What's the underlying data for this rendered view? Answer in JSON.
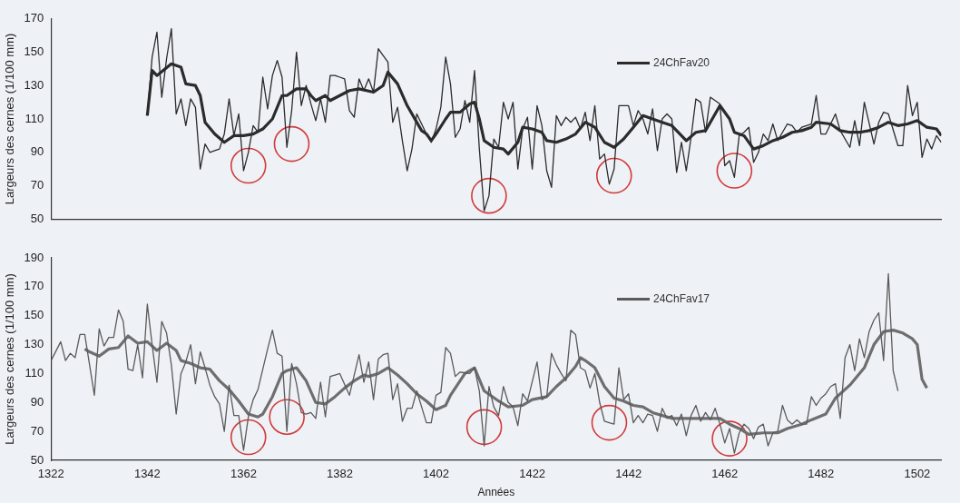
{
  "chart_data": [
    {
      "type": "line",
      "ylabel": "Largeurs des cernes (1/100 mm)",
      "xlim": [
        1322,
        1507
      ],
      "xticks": [
        1322,
        1342,
        1362,
        1382,
        1402,
        1422,
        1442,
        1462,
        1482,
        1502
      ],
      "ylim": [
        50,
        170
      ],
      "yticks": [
        50,
        70,
        90,
        110,
        130,
        150,
        170
      ],
      "tick_labels": "y",
      "grid": false,
      "legend": "top right",
      "marker": "none",
      "line_style": "solid",
      "series": [
        {
          "name": "24ChFav20",
          "color": "#2b2b2b",
          "x": [
            1342,
            1343,
            1344,
            1345,
            1346,
            1347,
            1348,
            1349,
            1350,
            1351,
            1352,
            1353,
            1354,
            1355,
            1356,
            1357,
            1358,
            1359,
            1360,
            1361,
            1362,
            1363,
            1364,
            1365,
            1366,
            1367,
            1368,
            1369,
            1370,
            1371,
            1372,
            1373,
            1374,
            1375,
            1376,
            1377,
            1378,
            1379,
            1380,
            1381,
            1382,
            1383,
            1384,
            1385,
            1386,
            1387,
            1388,
            1389,
            1390,
            1391,
            1392,
            1393,
            1394,
            1395,
            1396,
            1397,
            1398,
            1399,
            1400,
            1401,
            1402,
            1403,
            1404,
            1405,
            1406,
            1407,
            1408,
            1409,
            1410,
            1411,
            1412,
            1413,
            1414,
            1415,
            1416,
            1417,
            1418,
            1419,
            1420,
            1421,
            1422,
            1423,
            1424,
            1425,
            1426,
            1427,
            1428,
            1429,
            1430,
            1431,
            1432,
            1433,
            1434,
            1435,
            1436,
            1437,
            1438,
            1439,
            1440,
            1441,
            1442,
            1443,
            1444,
            1445,
            1446,
            1447,
            1448,
            1449,
            1450,
            1451,
            1452,
            1453,
            1454,
            1455,
            1456,
            1457,
            1458,
            1459,
            1460,
            1461,
            1462,
            1463,
            1464,
            1465,
            1466,
            1467,
            1468,
            1469,
            1470,
            1471,
            1472,
            1473,
            1474,
            1475,
            1476,
            1477,
            1478,
            1479,
            1480,
            1481,
            1482,
            1483,
            1485,
            1486,
            1488,
            1489,
            1490,
            1491,
            1493,
            1494,
            1495,
            1496,
            1498,
            1499,
            1500,
            1501,
            1502,
            1503,
            1504,
            1505,
            1506,
            1507
          ],
          "values": [
            112,
            147,
            162,
            123,
            146,
            164,
            113,
            122,
            106,
            122,
            117,
            80,
            95,
            90,
            91,
            92,
            101,
            122,
            100,
            113,
            79,
            90,
            106,
            102,
            135,
            116,
            136,
            145,
            135,
            93,
            115,
            150,
            118,
            130,
            119,
            109,
            122,
            108,
            136,
            136,
            135,
            134,
            115,
            111,
            134,
            127,
            134,
            126,
            152,
            148,
            144,
            108,
            117,
            97,
            79,
            92,
            113,
            107,
            101,
            96,
            104,
            117,
            147,
            131,
            99,
            104,
            121,
            108,
            139,
            92,
            55,
            64,
            98,
            93,
            120,
            110,
            120,
            80,
            104,
            111,
            80,
            118,
            106,
            79,
            69,
            112,
            106,
            111,
            108,
            111,
            104,
            114,
            97,
            118,
            86,
            89,
            71,
            80,
            118,
            118,
            118,
            106,
            115,
            110,
            101,
            116,
            91,
            110,
            113,
            110,
            78,
            96,
            79,
            99,
            122,
            120,
            102,
            123,
            121,
            119,
            82,
            85,
            75,
            100,
            102,
            105,
            84,
            90,
            101,
            97,
            107,
            97,
            102,
            107,
            106,
            102,
            105,
            106,
            107,
            124,
            101,
            101,
            113,
            103,
            93,
            109,
            94,
            120,
            95,
            108,
            114,
            113,
            94,
            94,
            130,
            112,
            120,
            87,
            98,
            92,
            100,
            96
          ]
        },
        {
          "color": "#2b2b2b",
          "x": [
            1342,
            1343,
            1344,
            1347,
            1349,
            1350,
            1352,
            1353,
            1354,
            1356,
            1358,
            1360,
            1362,
            1364,
            1366,
            1368,
            1370,
            1371,
            1373,
            1375,
            1376,
            1377,
            1379,
            1380,
            1382,
            1384,
            1386,
            1389,
            1391,
            1392,
            1394,
            1396,
            1399,
            1400,
            1401,
            1402,
            1404,
            1405,
            1407,
            1409,
            1410,
            1411,
            1412,
            1414,
            1416,
            1417,
            1419,
            1420,
            1422,
            1424,
            1425,
            1427,
            1429,
            1431,
            1433,
            1435,
            1437,
            1439,
            1441,
            1443,
            1445,
            1447,
            1449,
            1451,
            1454,
            1456,
            1458,
            1459,
            1461,
            1463,
            1464,
            1466,
            1468,
            1470,
            1472,
            1474,
            1476,
            1478,
            1480,
            1481,
            1484,
            1486,
            1488,
            1490,
            1492,
            1494,
            1496,
            1498,
            1500,
            1502,
            1504,
            1506,
            1507
          ],
          "values": [
            112,
            139,
            136,
            143,
            141,
            131,
            130,
            124,
            108,
            101,
            96,
            100,
            100,
            101,
            104,
            110,
            124,
            124,
            128,
            128,
            124,
            121,
            124,
            121,
            124,
            127,
            128,
            126,
            130,
            138,
            131,
            118,
            103,
            101,
            97,
            101,
            110,
            114,
            114,
            119,
            120,
            110,
            97,
            93,
            92,
            89,
            96,
            105,
            104,
            102,
            97,
            96,
            98,
            101,
            108,
            105,
            96,
            93,
            98,
            105,
            112,
            110,
            108,
            106,
            97,
            102,
            103,
            108,
            118,
            110,
            102,
            100,
            92,
            94,
            97,
            99,
            102,
            103,
            105,
            108,
            107,
            103,
            102,
            102,
            103,
            105,
            108,
            106,
            107,
            109,
            105,
            104,
            100
          ]
        },
        {
          "type": "scatter",
          "marker": "circle",
          "color": "#d23a3a",
          "x": [
            1363,
            1372,
            1413,
            1439,
            1464
          ],
          "values": [
            82,
            95,
            64,
            76,
            79
          ]
        }
      ]
    },
    {
      "type": "line",
      "xlabel": "Années",
      "ylabel": "Largeurs des cernes (1/100 mm)",
      "xlim": [
        1322,
        1507
      ],
      "xticks": [
        1322,
        1342,
        1362,
        1382,
        1402,
        1422,
        1442,
        1462,
        1482,
        1502
      ],
      "ylim": [
        50,
        190
      ],
      "yticks": [
        50,
        70,
        90,
        110,
        130,
        150,
        170,
        190
      ],
      "grid": false,
      "legend": "top right",
      "marker": "none",
      "line_style": "solid",
      "series": [
        {
          "name": "24ChFav17",
          "color": "#5a5a5a",
          "x": [
            1322,
            1324,
            1325,
            1326,
            1327,
            1328,
            1329,
            1331,
            1332,
            1333,
            1334,
            1335,
            1336,
            1337,
            1338,
            1339,
            1340,
            1341,
            1342,
            1343,
            1344,
            1345,
            1346,
            1347,
            1348,
            1349,
            1350,
            1351,
            1352,
            1353,
            1354,
            1355,
            1356,
            1357,
            1358,
            1359,
            1360,
            1361,
            1362,
            1363,
            1364,
            1365,
            1366,
            1367,
            1368,
            1369,
            1370,
            1371,
            1372,
            1373,
            1374,
            1375,
            1376,
            1377,
            1378,
            1379,
            1380,
            1381,
            1382,
            1384,
            1386,
            1387,
            1388,
            1389,
            1390,
            1391,
            1392,
            1393,
            1394,
            1395,
            1396,
            1397,
            1398,
            1399,
            1400,
            1401,
            1402,
            1403,
            1404,
            1405,
            1406,
            1407,
            1409,
            1410,
            1411,
            1412,
            1413,
            1414,
            1415,
            1416,
            1417,
            1418,
            1419,
            1420,
            1421,
            1423,
            1424,
            1425,
            1426,
            1427,
            1428,
            1429,
            1430,
            1431,
            1432,
            1433,
            1434,
            1435,
            1436,
            1437,
            1438,
            1439,
            1440,
            1441,
            1442,
            1443,
            1444,
            1445,
            1446,
            1447,
            1448,
            1449,
            1450,
            1451,
            1452,
            1453,
            1454,
            1455,
            1456,
            1457,
            1458,
            1459,
            1460,
            1461,
            1462,
            1463,
            1464,
            1465,
            1466,
            1467,
            1468,
            1469,
            1470,
            1471,
            1472,
            1473,
            1474,
            1475,
            1476,
            1477,
            1478,
            1479,
            1480,
            1481,
            1482,
            1483,
            1484,
            1485,
            1486,
            1487,
            1488,
            1489,
            1490,
            1491,
            1492,
            1493,
            1494,
            1495,
            1496,
            1497,
            1498
          ],
          "values": [
            119,
            132,
            119,
            124,
            121,
            137,
            137,
            95,
            141,
            129,
            135,
            135,
            154,
            146,
            113,
            112,
            130,
            107,
            158,
            130,
            104,
            146,
            138,
            116,
            82,
            110,
            118,
            130,
            103,
            125,
            114,
            102,
            94,
            89,
            70,
            102,
            81,
            81,
            57,
            80,
            92,
            99,
            113,
            127,
            140,
            124,
            122,
            70,
            117,
            103,
            83,
            82,
            83,
            79,
            104,
            80,
            108,
            109,
            110,
            95,
            123,
            104,
            118,
            92,
            120,
            123,
            124,
            92,
            103,
            77,
            86,
            86,
            98,
            87,
            76,
            76,
            95,
            97,
            128,
            124,
            108,
            111,
            110,
            114,
            98,
            60,
            101,
            87,
            81,
            101,
            90,
            87,
            74,
            96,
            91,
            118,
            92,
            94,
            124,
            116,
            110,
            105,
            140,
            137,
            114,
            112,
            100,
            110,
            90,
            77,
            76,
            75,
            114,
            92,
            96,
            76,
            81,
            76,
            82,
            81,
            70,
            86,
            79,
            81,
            74,
            82,
            67,
            81,
            88,
            77,
            83,
            78,
            86,
            75,
            62,
            72,
            55,
            69,
            75,
            72,
            65,
            73,
            75,
            60,
            69,
            70,
            88,
            78,
            75,
            78,
            75,
            75,
            94,
            88,
            93,
            96,
            101,
            103,
            79,
            121,
            130,
            112,
            134,
            121,
            139,
            147,
            152,
            119,
            179,
            112,
            98
          ]
        },
        {
          "color": "#6e6e6e",
          "x": [
            1329,
            1330,
            1332,
            1334,
            1336,
            1338,
            1340,
            1342,
            1344,
            1346,
            1348,
            1349,
            1351,
            1353,
            1355,
            1357,
            1359,
            1361,
            1363,
            1365,
            1366,
            1368,
            1370,
            1371,
            1373,
            1375,
            1377,
            1379,
            1381,
            1383,
            1385,
            1387,
            1388,
            1390,
            1392,
            1394,
            1396,
            1398,
            1400,
            1402,
            1404,
            1405,
            1407,
            1408,
            1410,
            1412,
            1415,
            1417,
            1420,
            1422,
            1425,
            1427,
            1429,
            1431,
            1432,
            1433,
            1435,
            1437,
            1439,
            1441,
            1443,
            1445,
            1447,
            1449,
            1451,
            1454,
            1456,
            1459,
            1461,
            1463,
            1465,
            1467,
            1470,
            1473,
            1475,
            1478,
            1480,
            1483,
            1485,
            1488,
            1491,
            1493,
            1495,
            1497,
            1499,
            1501,
            1502,
            1503,
            1504
          ],
          "values": [
            127,
            125,
            122,
            127,
            128,
            136,
            131,
            132,
            126,
            131,
            126,
            119,
            117,
            114,
            113,
            105,
            99,
            91,
            82,
            80,
            82,
            94,
            110,
            112,
            114,
            105,
            90,
            89,
            94,
            100,
            105,
            109,
            108,
            110,
            114,
            109,
            103,
            96,
            91,
            85,
            88,
            95,
            105,
            110,
            114,
            98,
            91,
            87,
            88,
            92,
            94,
            101,
            107,
            115,
            121,
            119,
            114,
            101,
            93,
            91,
            88,
            87,
            83,
            81,
            79,
            79,
            79,
            79,
            79,
            75,
            72,
            68,
            69,
            69,
            72,
            75,
            78,
            82,
            93,
            102,
            114,
            130,
            139,
            140,
            138,
            134,
            130,
            106,
            100
          ]
        },
        {
          "type": "scatter",
          "marker": "circle",
          "color": "#d23a3a",
          "x": [
            1363,
            1371,
            1412,
            1438,
            1463
          ],
          "values": [
            66,
            80,
            73,
            76,
            65
          ]
        }
      ]
    }
  ]
}
